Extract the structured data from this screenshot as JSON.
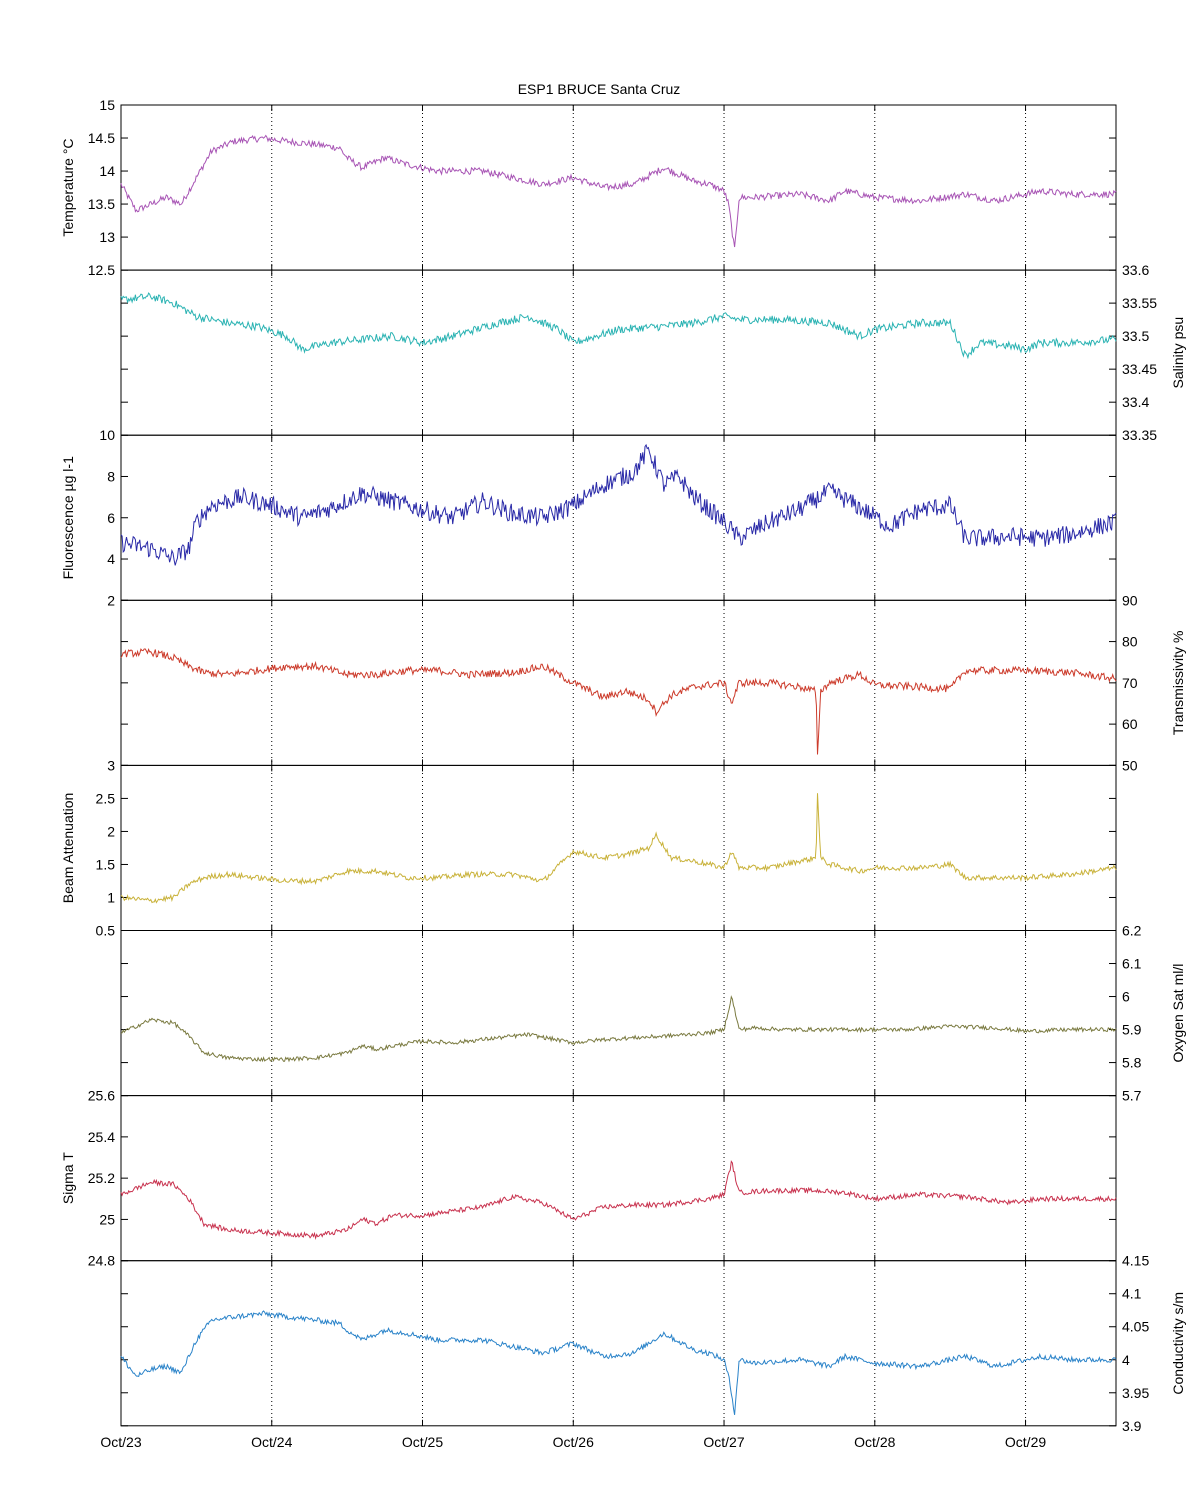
{
  "chart_data": {
    "type": "line",
    "title": "ESP1 BRUCE Santa Cruz",
    "x_ticks": [
      "Oct/23",
      "Oct/24",
      "Oct/25",
      "Oct/26",
      "Oct/27",
      "Oct/28",
      "Oct/29"
    ],
    "x_range_days": [
      0,
      6.6
    ],
    "grid": "vertical dotted at day ticks",
    "panels": [
      {
        "name": "Temperature",
        "ylabel": "Temperature °C",
        "axis_side": "left",
        "ylim": [
          12.5,
          15
        ],
        "ytick_values": [
          12.5,
          13,
          13.5,
          14,
          14.5,
          15
        ],
        "ytick_labels": [
          "12.5",
          "13",
          "13.5",
          "14",
          "14.5",
          "15"
        ],
        "color": "#a855b5",
        "noise": 0.05,
        "x": [
          0,
          0.05,
          0.1,
          0.2,
          0.3,
          0.4,
          0.5,
          0.6,
          0.75,
          0.95,
          1.1,
          1.3,
          1.45,
          1.5,
          1.6,
          1.75,
          1.9,
          2.1,
          2.4,
          2.6,
          2.8,
          3.0,
          3.2,
          3.4,
          3.6,
          3.8,
          3.9,
          4.0,
          4.03,
          4.07,
          4.1,
          4.2,
          4.5,
          4.7,
          4.8,
          5.0,
          5.3,
          5.6,
          5.8,
          6.0,
          6.1,
          6.3,
          6.6
        ],
        "y": [
          13.8,
          13.6,
          13.4,
          13.5,
          13.6,
          13.5,
          13.9,
          14.3,
          14.45,
          14.5,
          14.45,
          14.4,
          14.35,
          14.2,
          14.05,
          14.2,
          14.1,
          14.0,
          14.0,
          13.9,
          13.8,
          13.9,
          13.75,
          13.8,
          14.05,
          13.85,
          13.8,
          13.7,
          13.5,
          12.8,
          13.6,
          13.6,
          13.65,
          13.55,
          13.7,
          13.6,
          13.55,
          13.65,
          13.55,
          13.65,
          13.7,
          13.65,
          13.65
        ]
      },
      {
        "name": "Salinity",
        "ylabel": "Salinity psu",
        "axis_side": "right",
        "ylim": [
          33.35,
          33.6
        ],
        "ytick_values": [
          33.35,
          33.4,
          33.45,
          33.5,
          33.55,
          33.6
        ],
        "ytick_labels": [
          "33.35",
          "33.4",
          "33.45",
          "33.5",
          "33.55",
          "33.6"
        ],
        "color": "#2bb3b3",
        "noise": 0.006,
        "x": [
          0,
          0.2,
          0.35,
          0.5,
          0.7,
          0.9,
          1.1,
          1.2,
          1.4,
          1.6,
          1.8,
          2.0,
          2.2,
          2.5,
          2.7,
          2.9,
          3.0,
          3.3,
          3.6,
          3.8,
          4.0,
          4.1,
          4.4,
          4.7,
          4.9,
          5.0,
          5.3,
          5.5,
          5.6,
          5.7,
          5.9,
          6.0,
          6.1,
          6.3,
          6.6
        ],
        "y": [
          33.555,
          33.56,
          33.55,
          33.53,
          33.52,
          33.515,
          33.5,
          33.48,
          33.49,
          33.495,
          33.5,
          33.49,
          33.5,
          33.52,
          33.53,
          33.51,
          33.49,
          33.51,
          33.515,
          33.52,
          33.53,
          33.525,
          33.525,
          33.52,
          33.5,
          33.51,
          33.52,
          33.52,
          33.47,
          33.49,
          33.485,
          33.48,
          33.49,
          33.49,
          33.495
        ]
      },
      {
        "name": "Fluorescence",
        "ylabel": "Fluorescence µg l-1",
        "axis_side": "left",
        "ylim": [
          2,
          10
        ],
        "ytick_values": [
          2,
          4,
          6,
          8,
          10
        ],
        "ytick_labels": [
          "2",
          "4",
          "6",
          "8",
          "10"
        ],
        "color": "#2a2aa8",
        "noise": 0.45,
        "x": [
          0,
          0.2,
          0.35,
          0.45,
          0.5,
          0.6,
          0.8,
          1.0,
          1.2,
          1.4,
          1.6,
          1.8,
          2.0,
          2.2,
          2.4,
          2.6,
          2.8,
          3.0,
          3.2,
          3.4,
          3.5,
          3.6,
          3.7,
          3.8,
          4.0,
          4.1,
          4.3,
          4.5,
          4.7,
          4.9,
          5.1,
          5.3,
          5.5,
          5.6,
          5.7,
          5.9,
          6.1,
          6.3,
          6.5,
          6.6
        ],
        "y": [
          4.8,
          4.5,
          4.0,
          4.5,
          5.8,
          6.6,
          7.0,
          6.6,
          6.0,
          6.5,
          7.2,
          6.8,
          6.4,
          6.0,
          6.8,
          6.2,
          6.0,
          6.6,
          7.6,
          8.2,
          9.3,
          7.6,
          8.0,
          7.0,
          5.8,
          5.0,
          5.8,
          6.4,
          7.3,
          6.5,
          5.6,
          6.4,
          6.6,
          5.0,
          5.0,
          5.1,
          5.0,
          5.2,
          5.6,
          5.8
        ]
      },
      {
        "name": "Transmissivity",
        "ylabel": "Transmissivity %",
        "axis_side": "right",
        "ylim": [
          50,
          90
        ],
        "ytick_values": [
          50,
          60,
          70,
          80,
          90
        ],
        "ytick_labels": [
          "50",
          "60",
          "70",
          "80",
          "90"
        ],
        "color": "#cc3b2b",
        "noise": 0.9,
        "x": [
          0,
          0.2,
          0.35,
          0.45,
          0.55,
          0.7,
          0.9,
          1.1,
          1.3,
          1.5,
          1.7,
          1.9,
          2.1,
          2.3,
          2.6,
          2.8,
          3.0,
          3.2,
          3.35,
          3.5,
          3.55,
          3.65,
          3.8,
          4.0,
          4.05,
          4.1,
          4.3,
          4.5,
          4.61,
          4.62,
          4.64,
          4.7,
          4.9,
          5.0,
          5.3,
          5.5,
          5.6,
          5.7,
          6.0,
          6.3,
          6.6
        ],
        "y": [
          77,
          77.5,
          76,
          74,
          72.5,
          72,
          73,
          74,
          74,
          72,
          72,
          73,
          73,
          72,
          72.5,
          74,
          70,
          66.5,
          68,
          66,
          63,
          67,
          69,
          70,
          65,
          70,
          70,
          69,
          68,
          52,
          68,
          70,
          72,
          69.5,
          69,
          68.5,
          73,
          73,
          73,
          72.5,
          71
        ]
      },
      {
        "name": "Beam Attenuation",
        "ylabel": "Beam Attenuation",
        "axis_side": "left",
        "ylim": [
          0.5,
          3
        ],
        "ytick_values": [
          0.5,
          1,
          1.5,
          2,
          2.5,
          3
        ],
        "ytick_labels": [
          "0.5",
          "1",
          "1.5",
          "2",
          "2.5",
          "3"
        ],
        "color": "#c9b23a",
        "noise": 0.04,
        "x": [
          0,
          0.2,
          0.35,
          0.45,
          0.55,
          0.7,
          0.9,
          1.1,
          1.3,
          1.5,
          1.7,
          1.9,
          2.1,
          2.3,
          2.6,
          2.8,
          3.0,
          3.2,
          3.35,
          3.5,
          3.55,
          3.65,
          3.8,
          4.0,
          4.05,
          4.1,
          4.3,
          4.5,
          4.61,
          4.62,
          4.64,
          4.7,
          4.9,
          5.0,
          5.3,
          5.5,
          5.6,
          5.7,
          6.0,
          6.3,
          6.6
        ],
        "y": [
          1.0,
          0.95,
          1.0,
          1.2,
          1.3,
          1.35,
          1.3,
          1.25,
          1.25,
          1.4,
          1.4,
          1.3,
          1.3,
          1.35,
          1.35,
          1.25,
          1.7,
          1.6,
          1.65,
          1.75,
          1.95,
          1.6,
          1.55,
          1.45,
          1.7,
          1.45,
          1.45,
          1.55,
          1.6,
          2.6,
          1.6,
          1.5,
          1.4,
          1.45,
          1.45,
          1.5,
          1.3,
          1.3,
          1.3,
          1.35,
          1.45
        ]
      },
      {
        "name": "Oxygen Sat",
        "ylabel": "Oxygen Sat ml/l",
        "axis_side": "right",
        "ylim": [
          5.7,
          6.2
        ],
        "ytick_values": [
          5.7,
          5.8,
          5.9,
          6,
          6.1,
          6.2
        ],
        "ytick_labels": [
          "5.7",
          "5.8",
          "5.9",
          "6",
          "6.1",
          "6.2"
        ],
        "color": "#7a7a40",
        "noise": 0.006,
        "x": [
          0,
          0.2,
          0.35,
          0.45,
          0.55,
          0.7,
          0.9,
          1.1,
          1.3,
          1.5,
          1.6,
          1.7,
          1.8,
          2.0,
          2.2,
          2.4,
          2.7,
          3.0,
          3.2,
          3.4,
          3.6,
          3.9,
          4.0,
          4.05,
          4.1,
          4.2,
          4.4,
          4.8,
          5.2,
          5.5,
          5.8,
          6.0,
          6.3,
          6.6
        ],
        "y": [
          5.89,
          5.93,
          5.92,
          5.88,
          5.83,
          5.815,
          5.81,
          5.81,
          5.815,
          5.83,
          5.85,
          5.84,
          5.85,
          5.865,
          5.86,
          5.87,
          5.885,
          5.86,
          5.87,
          5.875,
          5.88,
          5.89,
          5.9,
          6.0,
          5.9,
          5.905,
          5.9,
          5.9,
          5.9,
          5.91,
          5.905,
          5.895,
          5.9,
          5.9
        ]
      },
      {
        "name": "Sigma T",
        "ylabel": "Sigma T",
        "axis_side": "left",
        "ylim": [
          24.8,
          25.6
        ],
        "ytick_values": [
          24.8,
          25,
          25.2,
          25.4,
          25.6
        ],
        "ytick_labels": [
          "24.8",
          "25",
          "25.2",
          "25.4",
          "25.6"
        ],
        "color": "#c8324e",
        "noise": 0.012,
        "x": [
          0,
          0.2,
          0.35,
          0.45,
          0.55,
          0.7,
          0.9,
          1.1,
          1.3,
          1.5,
          1.6,
          1.7,
          1.8,
          2.0,
          2.2,
          2.4,
          2.6,
          2.8,
          3.0,
          3.2,
          3.4,
          3.6,
          3.9,
          4.0,
          4.05,
          4.1,
          4.3,
          4.6,
          4.8,
          5.0,
          5.3,
          5.6,
          5.9,
          6.1,
          6.3,
          6.6
        ],
        "y": [
          25.12,
          25.18,
          25.17,
          25.1,
          24.98,
          24.95,
          24.94,
          24.93,
          24.92,
          24.95,
          25.0,
          24.98,
          25.02,
          25.02,
          25.04,
          25.06,
          25.11,
          25.08,
          25.0,
          25.06,
          25.07,
          25.07,
          25.1,
          25.12,
          25.28,
          25.13,
          25.14,
          25.14,
          25.13,
          25.1,
          25.12,
          25.11,
          25.08,
          25.1,
          25.1,
          25.1
        ]
      },
      {
        "name": "Conductivity",
        "ylabel": "Conductivity s/m",
        "axis_side": "right",
        "ylim": [
          3.9,
          4.15
        ],
        "ytick_values": [
          3.9,
          3.95,
          4,
          4.05,
          4.1,
          4.15
        ],
        "ytick_labels": [
          "3.9",
          "3.95",
          "4",
          "4.05",
          "4.1",
          "4.15"
        ],
        "color": "#2a83c9",
        "noise": 0.004,
        "x": [
          0,
          0.05,
          0.1,
          0.2,
          0.3,
          0.4,
          0.5,
          0.6,
          0.75,
          0.95,
          1.1,
          1.3,
          1.45,
          1.5,
          1.6,
          1.75,
          1.9,
          2.1,
          2.4,
          2.6,
          2.8,
          3.0,
          3.2,
          3.4,
          3.6,
          3.8,
          3.9,
          4.0,
          4.03,
          4.07,
          4.1,
          4.2,
          4.5,
          4.7,
          4.8,
          5.0,
          5.3,
          5.6,
          5.8,
          6.0,
          6.1,
          6.3,
          6.6
        ],
        "y": [
          4.005,
          3.99,
          3.975,
          3.985,
          3.99,
          3.98,
          4.03,
          4.06,
          4.065,
          4.07,
          4.065,
          4.06,
          4.055,
          4.045,
          4.03,
          4.045,
          4.04,
          4.03,
          4.03,
          4.02,
          4.01,
          4.025,
          4.005,
          4.01,
          4.04,
          4.015,
          4.01,
          4.0,
          3.975,
          3.92,
          4.0,
          3.995,
          4.0,
          3.99,
          4.005,
          3.995,
          3.99,
          4.005,
          3.99,
          4.0,
          4.005,
          4.0,
          4.0
        ]
      }
    ]
  }
}
